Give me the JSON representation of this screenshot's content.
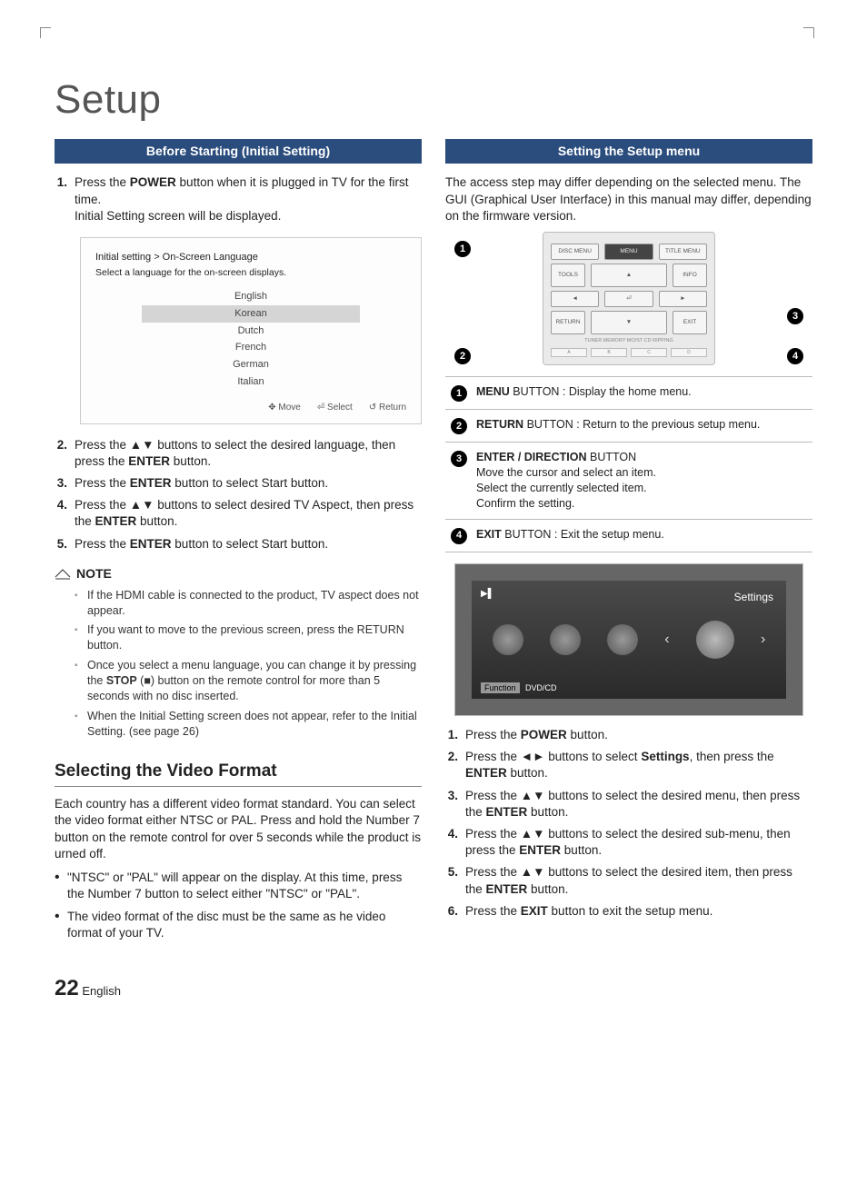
{
  "page_title": "Setup",
  "left": {
    "section_title": "Before Starting (Initial Setting)",
    "steps_a": [
      {
        "n": "1.",
        "html": "Press the <b>POWER</b> button when it is plugged in TV for the first time.<br>Initial Setting screen will be displayed."
      }
    ],
    "lang_box": {
      "title": "Initial setting > On-Screen Language",
      "subtitle": "Select a language for the on-screen displays.",
      "items": [
        "English",
        "Korean",
        "Dutch",
        "French",
        "German",
        "Italian"
      ],
      "selected_index": 1,
      "footer": [
        "✥ Move",
        "⏎ Select",
        "↺ Return"
      ]
    },
    "steps_b": [
      {
        "n": "2.",
        "html": "Press the ▲▼ buttons to select the desired language, then press the <b>ENTER</b> button."
      },
      {
        "n": "3.",
        "html": "Press the <b>ENTER</b> button to select Start button."
      },
      {
        "n": "4.",
        "html": "Press the ▲▼ buttons to select desired TV Aspect, then press the <b>ENTER</b> button."
      },
      {
        "n": "5.",
        "html": "Press the <b>ENTER</b> button to select Start button."
      }
    ],
    "note_label": "NOTE",
    "notes": [
      "If the HDMI cable is connected to the product, TV aspect does not appear.",
      "If you want to move to the previous screen, press the RETURN button.",
      "Once you select a menu language, you can change it by pressing the <b>STOP</b> (■) button on the remote control for more than 5 seconds with no disc inserted.",
      "When the Initial Setting screen does not appear, refer to the Initial Setting. (see page 26)"
    ],
    "h2": "Selecting the Video Format",
    "body": "Each country has a different video format standard. You can select the video format either NTSC or PAL. Press and hold the Number 7 button on the remote control for over 5 seconds while the product is urned off.",
    "bullets": [
      "\"NTSC\" or \"PAL\" will appear on the display. At this time, press the Number 7 button to select either \"NTSC\" or \"PAL\".",
      "The video format of the disc must be the same as he video format of your TV."
    ]
  },
  "right": {
    "section_title": "Setting the Setup menu",
    "intro": "The access step may differ depending on the selected menu. The GUI (Graphical User Interface) in this manual may differ, depending on the firmware version.",
    "remote": {
      "top_row": [
        "DISC MENU",
        "MENU",
        "TITLE MENU"
      ],
      "mid_left": "TOOLS",
      "mid_right": "INFO",
      "nav_up": "▲",
      "nav_left": "◄",
      "nav_center": "⏎",
      "nav_right": "►",
      "nav_down": "▼",
      "bot_left": "RETURN",
      "bot_right": "EXIT",
      "strip_label": "TUNER MEMORY   MO/ST   CD RIPPING",
      "strip": [
        "A",
        "B",
        "C",
        "D"
      ]
    },
    "btn_table": [
      {
        "n": "1",
        "html": "<b>MENU</b> BUTTON : Display the home menu."
      },
      {
        "n": "2",
        "html": "<b>RETURN</b> BUTTON : Return to the previous setup menu."
      },
      {
        "n": "3",
        "html": "<b>ENTER / DIRECTION</b> BUTTON<br>Move the cursor and select an item.<br>Select the currently selected item.<br>Confirm the setting."
      },
      {
        "n": "4",
        "html": "<b>EXIT</b> BUTTON : Exit the setup menu."
      }
    ],
    "tv": {
      "title": "Settings",
      "footer_fn": "Function",
      "footer_src": "DVD/CD",
      "play_icon": "▶▌"
    },
    "steps": [
      {
        "n": "1.",
        "html": "Press the <b>POWER</b> button."
      },
      {
        "n": "2.",
        "html": "Press the ◄► buttons to select <b>Settings</b>, then press the <b>ENTER</b> button."
      },
      {
        "n": "3.",
        "html": "Press the ▲▼ buttons to select the desired menu, then press the <b>ENTER</b> button."
      },
      {
        "n": "4.",
        "html": "Press the ▲▼ buttons to select the desired sub-menu, then press the <b>ENTER</b> button."
      },
      {
        "n": "5.",
        "html": "Press the ▲▼ buttons to select the desired item, then press the <b>ENTER</b> button."
      },
      {
        "n": "6.",
        "html": "Press the <b>EXIT</b> button to exit the setup menu."
      }
    ]
  },
  "page_number": "22",
  "page_lang": "English"
}
